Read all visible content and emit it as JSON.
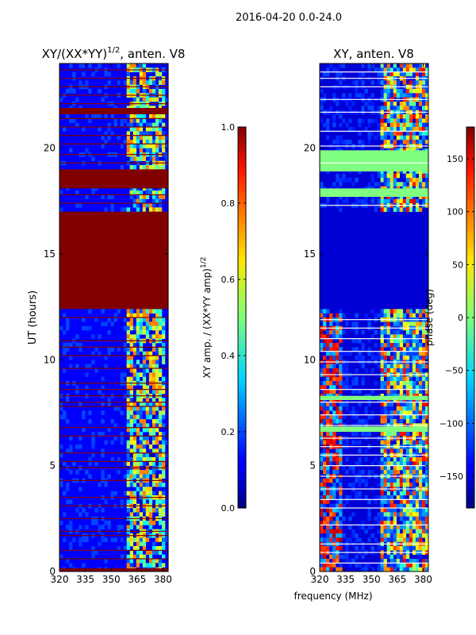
{
  "figure_title": "2016-04-20 0.0-24.0",
  "shared_xlabel": "frequency (MHz)",
  "colors": {
    "masked": "#800000",
    "low": "#00008f",
    "mid": "#00c0ff",
    "high": "#ffff00",
    "line_white": "#ffffff",
    "line_green": "#80ff80"
  },
  "chart_data": [
    {
      "type": "heatmap",
      "title_main": "XY/(XX*YY)",
      "title_sup": "1/2",
      "title_tail": ", anten. V8",
      "ylabel": "UT (hours)",
      "xlabel": "",
      "xlim": [
        320,
        383
      ],
      "ylim": [
        0,
        24
      ],
      "xticks": [
        320,
        335,
        350,
        365,
        380
      ],
      "yticks": [
        0,
        5,
        10,
        15,
        20
      ],
      "value_range": [
        0.0,
        1.0
      ],
      "background_level": 0.12,
      "active_band_mhz": [
        359,
        382
      ],
      "masked_blocks_hours": [
        [
          0,
          0.15
        ],
        [
          12.4,
          17.0
        ],
        [
          18.1,
          19.0
        ],
        [
          21.6,
          21.9
        ]
      ],
      "flag_lines_hours": [
        0.6,
        1.0,
        1.7,
        1.9,
        2.5,
        3.1,
        3.5,
        4.3,
        4.9,
        5.2,
        5.6,
        6.4,
        6.8,
        7.8,
        8.0,
        8.3,
        8.6,
        8.9,
        9.6,
        10.2,
        10.6,
        10.9,
        12.0,
        17.4,
        17.8,
        19.3,
        19.7,
        20.2,
        20.6,
        21.0,
        21.4,
        22.1,
        22.5,
        22.9,
        23.3,
        23.7
      ],
      "colorbar": {
        "label_main": "XY amp. / (XX*YY amp)",
        "label_sup": "1/2",
        "min": 0.0,
        "max": 1.0,
        "ticks": [
          "0.0",
          "0.2",
          "0.4",
          "0.6",
          "0.8",
          "1.0"
        ],
        "tick_values": [
          0.0,
          0.2,
          0.4,
          0.6,
          0.8,
          1.0
        ]
      }
    },
    {
      "type": "heatmap",
      "title_main": "XY, anten. V8",
      "ylabel": "",
      "xlabel": "frequency (MHz)",
      "xlim": [
        320,
        383
      ],
      "ylim": [
        0,
        24
      ],
      "xticks": [
        320,
        335,
        350,
        365,
        380
      ],
      "yticks": [
        0,
        5,
        10,
        15,
        20
      ],
      "value_range": [
        -180,
        180
      ],
      "background_level": -150,
      "uniform_block_hours": [
        12.4,
        17.0
      ],
      "white_lines_hours": [
        0.4,
        0.9,
        1.3,
        2.2,
        3.0,
        3.4,
        3.9,
        4.5,
        5.0,
        5.5,
        5.9,
        6.3,
        6.9,
        7.4,
        8.0,
        8.6,
        9.3,
        9.9,
        10.4,
        11.0,
        11.5,
        11.9,
        17.3,
        19.3,
        20.1,
        20.8,
        21.7,
        22.3,
        22.9,
        23.3,
        23.6
      ],
      "green_bands_hours": [
        [
          6.6,
          6.85
        ],
        [
          8.1,
          8.3
        ],
        [
          17.7,
          18.1
        ],
        [
          18.9,
          19.9
        ]
      ],
      "colorbar": {
        "label_main": "phase (deg)",
        "min": -180,
        "max": 180,
        "ticks": [
          "150",
          "100",
          "50",
          "0",
          "−50",
          "−100",
          "−150"
        ],
        "tick_values": [
          150,
          100,
          50,
          0,
          -50,
          -100,
          -150
        ]
      }
    }
  ]
}
